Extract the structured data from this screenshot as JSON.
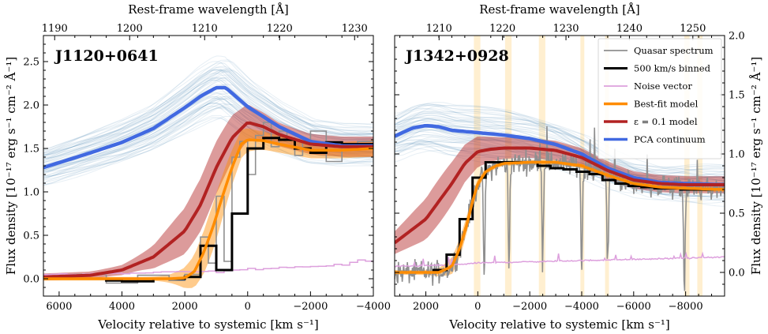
{
  "chart_data": [
    {
      "type": "line",
      "title": "J1120+0641",
      "xlabel": "Velocity relative to systemic [km s⁻¹]",
      "ylabel": "Flux density [10⁻¹⁷ erg s⁻¹ cm⁻² Å⁻¹]",
      "top_xlabel": "Rest-frame wavelength [Å]",
      "xlim": [
        6500,
        -4000
      ],
      "ylim": [
        -0.2,
        2.8
      ],
      "xticks": [
        6000,
        4000,
        2000,
        0,
        -2000,
        -4000
      ],
      "xtick_labels": [
        "6000",
        "4000",
        "2000",
        "0",
        "−2000",
        "−4000"
      ],
      "yticks": [
        0.0,
        0.5,
        1.0,
        1.5,
        2.0,
        2.5
      ],
      "ytick_labels": [
        "0.0",
        "0.5",
        "1.0",
        "1.5",
        "2.0",
        "2.5"
      ],
      "top_ticks": [
        1190,
        1200,
        1210,
        1220,
        1230
      ],
      "top_tick_labels": [
        "1190",
        "1200",
        "1210",
        "1220",
        "1230"
      ],
      "series": [
        {
          "name": "PCA continuum",
          "color": "#4169e1",
          "x": [
            6500,
            5000,
            4000,
            3000,
            2000,
            1500,
            1000,
            700,
            0,
            -1000,
            -2000,
            -3000,
            -4000
          ],
          "y": [
            1.28,
            1.45,
            1.57,
            1.73,
            1.97,
            2.1,
            2.2,
            2.2,
            1.98,
            1.75,
            1.58,
            1.53,
            1.53
          ]
        },
        {
          "name": "ε = 0.1 model",
          "color": "#b22222",
          "x": [
            6500,
            5000,
            4000,
            3000,
            2000,
            1500,
            1000,
            500,
            0,
            -500,
            -1000,
            -2000,
            -3000,
            -4000
          ],
          "y": [
            0.02,
            0.04,
            0.1,
            0.25,
            0.55,
            0.85,
            1.28,
            1.62,
            1.8,
            1.75,
            1.66,
            1.55,
            1.52,
            1.52
          ]
        },
        {
          "name": "Best-fit model",
          "color": "#ff8c00",
          "x": [
            6500,
            4000,
            2500,
            2000,
            1700,
            1400,
            1100,
            800,
            500,
            200,
            0,
            -500,
            -1000,
            -2000,
            -3000,
            -4000
          ],
          "y": [
            0.0,
            0.0,
            0.0,
            0.01,
            0.08,
            0.3,
            0.6,
            0.95,
            1.28,
            1.55,
            1.6,
            1.59,
            1.55,
            1.48,
            1.48,
            1.5
          ]
        },
        {
          "name": "Noise vector",
          "color": "#dda0dd",
          "x": [
            6500,
            4000,
            2000,
            1000,
            0,
            -1000,
            -2000,
            -3000,
            -3500,
            -4000
          ],
          "y": [
            0.05,
            0.06,
            0.08,
            0.08,
            0.11,
            0.13,
            0.14,
            0.16,
            0.21,
            0.19
          ]
        }
      ],
      "binned_500kms": {
        "x": [
          6500,
          6000,
          5500,
          5000,
          4500,
          4000,
          3500,
          3000,
          2500,
          2000,
          1500,
          1000,
          500,
          0,
          -500,
          -1000,
          -1500,
          -2000,
          -2500,
          -3000,
          -3500,
          -4000
        ],
        "y": [
          0.0,
          0.0,
          0.0,
          0.0,
          -0.02,
          -0.03,
          -0.03,
          0.0,
          0.0,
          0.02,
          0.38,
          0.1,
          0.75,
          1.5,
          1.62,
          1.6,
          1.5,
          1.45,
          1.57,
          1.55,
          1.55,
          1.55
        ]
      },
      "quasar_spectrum": {
        "x": [
          6500,
          5500,
          4500,
          3500,
          2500,
          2000,
          1500,
          1250,
          1000,
          750,
          500,
          250,
          0,
          -250,
          -500,
          -750,
          -1000,
          -1250,
          -1500,
          -1750,
          -2000,
          -2500,
          -3000,
          -3500,
          -4000
        ],
        "y": [
          0.02,
          0.05,
          -0.05,
          0.04,
          -0.02,
          0.05,
          0.48,
          0.18,
          0.95,
          0.2,
          1.4,
          1.58,
          1.2,
          1.65,
          1.8,
          1.52,
          1.7,
          1.62,
          1.42,
          1.58,
          1.7,
          1.35,
          1.52,
          1.58,
          1.6
        ]
      }
    },
    {
      "type": "line",
      "title": "J1342+0928",
      "xlabel": "Velocity relative to systemic [km s⁻¹]",
      "ylabel": "Flux density [10⁻¹⁷ erg s⁻¹ cm⁻² Å⁻¹]",
      "top_xlabel": "Rest-frame wavelength [Å]",
      "xlim": [
        3200,
        -9500
      ],
      "ylim": [
        -0.2,
        2.0
      ],
      "xticks": [
        2000,
        0,
        -2000,
        -4000,
        -6000,
        -8000
      ],
      "xtick_labels": [
        "2000",
        "0",
        "−2000",
        "−4000",
        "−6000",
        "−8000"
      ],
      "yticks": [
        0.0,
        0.5,
        1.0,
        1.5,
        2.0
      ],
      "ytick_labels": [
        "0.0",
        "0.5",
        "1.0",
        "1.5",
        "2.0"
      ],
      "top_ticks": [
        1210,
        1220,
        1230,
        1240,
        1250
      ],
      "top_tick_labels": [
        "1210",
        "1220",
        "1230",
        "1240",
        "1250"
      ],
      "masked_regions_kms": [
        [
          150,
          -100
        ],
        [
          -1050,
          -1300
        ],
        [
          -2350,
          -2600
        ],
        [
          -3950,
          -4100
        ],
        [
          -4900,
          -5050
        ],
        [
          -7950,
          -8150
        ],
        [
          -8450,
          -8650
        ]
      ],
      "series": [
        {
          "name": "PCA continuum",
          "color": "#4169e1",
          "x": [
            3200,
            2500,
            2000,
            1500,
            1000,
            0,
            -1000,
            -2000,
            -3000,
            -4000,
            -5000,
            -6000,
            -7000,
            -8000,
            -9500
          ],
          "y": [
            1.15,
            1.22,
            1.24,
            1.23,
            1.2,
            1.18,
            1.16,
            1.13,
            1.08,
            1.0,
            0.88,
            0.8,
            0.76,
            0.75,
            0.74
          ]
        },
        {
          "name": "ε = 0.1 model",
          "color": "#b22222",
          "x": [
            3200,
            2000,
            1000,
            500,
            0,
            -500,
            -1000,
            -2000,
            -3000,
            -4000,
            -5000,
            -6000,
            -7000,
            -8000,
            -9500
          ],
          "y": [
            0.25,
            0.45,
            0.75,
            0.92,
            1.02,
            1.04,
            1.05,
            1.05,
            1.03,
            0.97,
            0.86,
            0.78,
            0.75,
            0.74,
            0.74
          ]
        },
        {
          "name": "Best-fit model",
          "color": "#ff8c00",
          "x": [
            3200,
            1500,
            1000,
            700,
            400,
            200,
            0,
            -300,
            -700,
            -1000,
            -2000,
            -3000,
            -4000,
            -5000,
            -6000,
            -7000,
            -8000,
            -9500
          ],
          "y": [
            0.0,
            0.0,
            0.05,
            0.2,
            0.42,
            0.6,
            0.75,
            0.85,
            0.9,
            0.92,
            0.93,
            0.93,
            0.9,
            0.82,
            0.75,
            0.72,
            0.71,
            0.7
          ]
        },
        {
          "name": "Noise vector",
          "color": "#dda0dd",
          "x": [
            3200,
            1500,
            500,
            0,
            -2000,
            -4000,
            -6000,
            -8000,
            -9500
          ],
          "y": [
            0.05,
            0.06,
            0.07,
            0.08,
            0.09,
            0.1,
            0.11,
            0.12,
            0.13
          ]
        }
      ],
      "binned_500kms": {
        "x": [
          3200,
          2700,
          2200,
          1700,
          1200,
          700,
          200,
          -300,
          -800,
          -1300,
          -1800,
          -2300,
          -2800,
          -3300,
          -3800,
          -4300,
          -4800,
          -5300,
          -5800,
          -6300,
          -6800,
          -7300,
          -7800,
          -8300,
          -8800,
          -9300
        ],
        "y": [
          0.0,
          0.0,
          0.0,
          0.02,
          0.15,
          0.45,
          0.8,
          0.93,
          0.93,
          0.93,
          0.93,
          0.9,
          0.88,
          0.87,
          0.85,
          0.83,
          0.78,
          0.75,
          0.73,
          0.72,
          0.71,
          0.71,
          0.7,
          0.7,
          0.7,
          0.7
        ]
      },
      "quasar_spectrum_note": "Noisy unbinned spectrum (grey) with narrow absorption dips near -250, -1200, -2500, -4000, -5000 km/s."
    }
  ],
  "legend": {
    "placement": "top-right of right panel",
    "entries": [
      {
        "label": "Quasar spectrum",
        "color": "#8f8f8f"
      },
      {
        "label": "500 km/s binned",
        "color": "#000000"
      },
      {
        "label": "Noise vector",
        "color": "#dda0dd"
      },
      {
        "label": "Best-fit model",
        "color": "#ff8c00"
      },
      {
        "label": "ε = 0.1 model",
        "color": "#b22222"
      },
      {
        "label": "PCA continuum",
        "color": "#4169e1"
      }
    ]
  }
}
